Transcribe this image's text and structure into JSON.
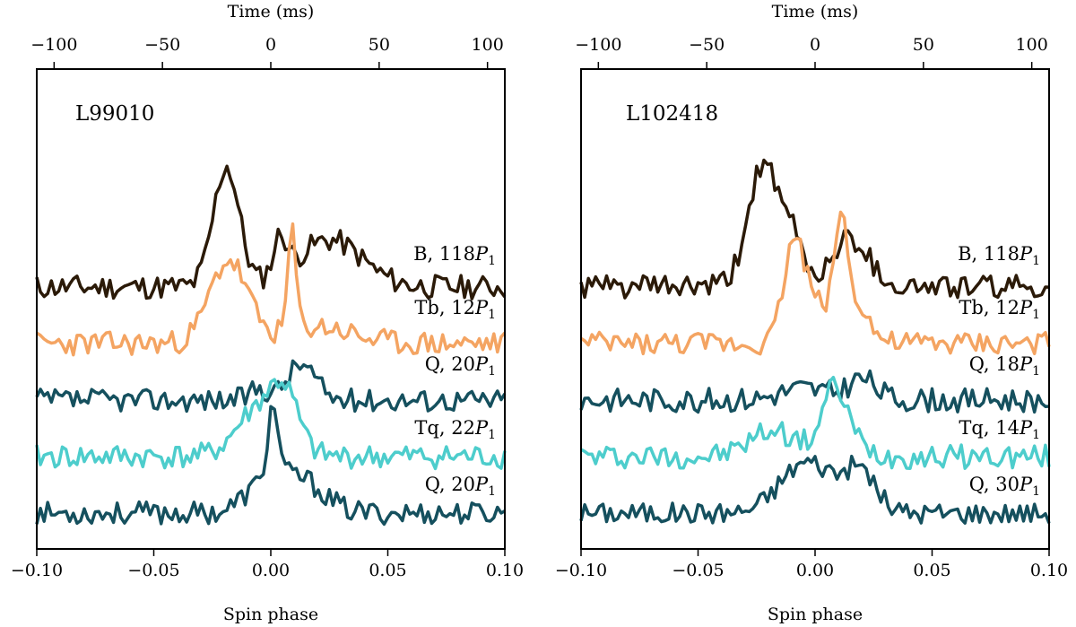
{
  "chart_data": [
    {
      "type": "line",
      "title": "L99010",
      "xlabel": "Spin phase",
      "x2label": "Time (ms)",
      "xlim": [
        -0.1,
        0.1
      ],
      "x2lim": [
        -108,
        108
      ],
      "xticks": [
        "−0.10",
        "−0.05",
        "0.00",
        "0.05",
        "0.10"
      ],
      "x2ticks": [
        "−100",
        "−50",
        "0",
        "50",
        "100"
      ],
      "series": [
        {
          "name": "B",
          "prefix": "B, 118",
          "color": "#2b1a08",
          "offset": 4,
          "peaks": [
            [
              -0.019,
              3.2,
              0.0055
            ],
            [
              0.004,
              1.0,
              0.003
            ],
            [
              0.025,
              1.25,
              0.014
            ]
          ],
          "noise": 0.32,
          "seed": 11
        },
        {
          "name": "Tb",
          "prefix": "Tb, 12",
          "color": "#f4a462",
          "offset": 3,
          "peaks": [
            [
              -0.018,
              2.2,
              0.008
            ],
            [
              0.009,
              2.6,
              0.0018
            ],
            [
              0.02,
              0.45,
              0.014
            ]
          ],
          "noise": 0.32,
          "seed": 23
        },
        {
          "name": "Q",
          "prefix": "Q, 20",
          "color": "#15505e",
          "offset": 2,
          "peaks": [
            [
              0.013,
              0.95,
              0.006
            ],
            [
              -0.005,
              0.3,
              0.004
            ]
          ],
          "noise": 0.3,
          "seed": 37
        },
        {
          "name": "Tq",
          "prefix": "Tq, 22",
          "color": "#4dcdcc",
          "offset": 1,
          "peaks": [
            [
              -0.006,
              1.2,
              0.009
            ],
            [
              0.006,
              1.45,
              0.006
            ]
          ],
          "noise": 0.32,
          "seed": 41
        },
        {
          "name": "Q",
          "prefix": "Q, 20",
          "color": "#15505e",
          "offset": 0,
          "peaks": [
            [
              0.001,
              1.9,
              0.0022
            ],
            [
              -0.004,
              0.6,
              0.008
            ],
            [
              0.012,
              0.9,
              0.01
            ]
          ],
          "noise": 0.3,
          "seed": 53
        }
      ]
    },
    {
      "type": "line",
      "title": "L102418",
      "xlabel": "Spin phase",
      "x2label": "Time (ms)",
      "xlim": [
        -0.1,
        0.1
      ],
      "x2lim": [
        -108,
        108
      ],
      "xticks": [
        "−0.10",
        "−0.05",
        "0.00",
        "0.05",
        "0.10"
      ],
      "x2ticks": [
        "−100",
        "−50",
        "0",
        "50",
        "100"
      ],
      "series": [
        {
          "name": "B",
          "prefix": "B, 118",
          "color": "#2b1a08",
          "offset": 4,
          "peaks": [
            [
              -0.022,
              3.3,
              0.0065
            ],
            [
              -0.009,
              1.2,
              0.004
            ],
            [
              0.015,
              1.3,
              0.008
            ]
          ],
          "noise": 0.32,
          "seed": 61
        },
        {
          "name": "Tb",
          "prefix": "Tb, 12",
          "color": "#f4a462",
          "offset": 3,
          "peaks": [
            [
              -0.009,
              2.5,
              0.0045
            ],
            [
              0.011,
              2.6,
              0.0025
            ],
            [
              0.003,
              1.0,
              0.008
            ],
            [
              0.018,
              1.0,
              0.005
            ]
          ],
          "noise": 0.3,
          "seed": 73
        },
        {
          "name": "Q",
          "prefix": "Q, 18",
          "color": "#15505e",
          "offset": 2,
          "peaks": [
            [
              0.02,
              0.55,
              0.006
            ],
            [
              -0.005,
              0.3,
              0.01
            ]
          ],
          "noise": 0.32,
          "seed": 83
        },
        {
          "name": "Tq",
          "prefix": "Tq, 14",
          "color": "#4dcdcc",
          "offset": 1,
          "peaks": [
            [
              -0.018,
              0.7,
              0.01
            ],
            [
              0.008,
              1.4,
              0.005
            ],
            [
              0.012,
              0.5,
              0.008
            ]
          ],
          "noise": 0.32,
          "seed": 97
        },
        {
          "name": "Q",
          "prefix": "Q, 30",
          "color": "#15505e",
          "offset": 0,
          "peaks": [
            [
              -0.007,
              0.9,
              0.01
            ],
            [
              0.02,
              0.85,
              0.006
            ],
            [
              0.006,
              0.7,
              0.012
            ]
          ],
          "noise": 0.28,
          "seed": 101
        }
      ]
    }
  ]
}
